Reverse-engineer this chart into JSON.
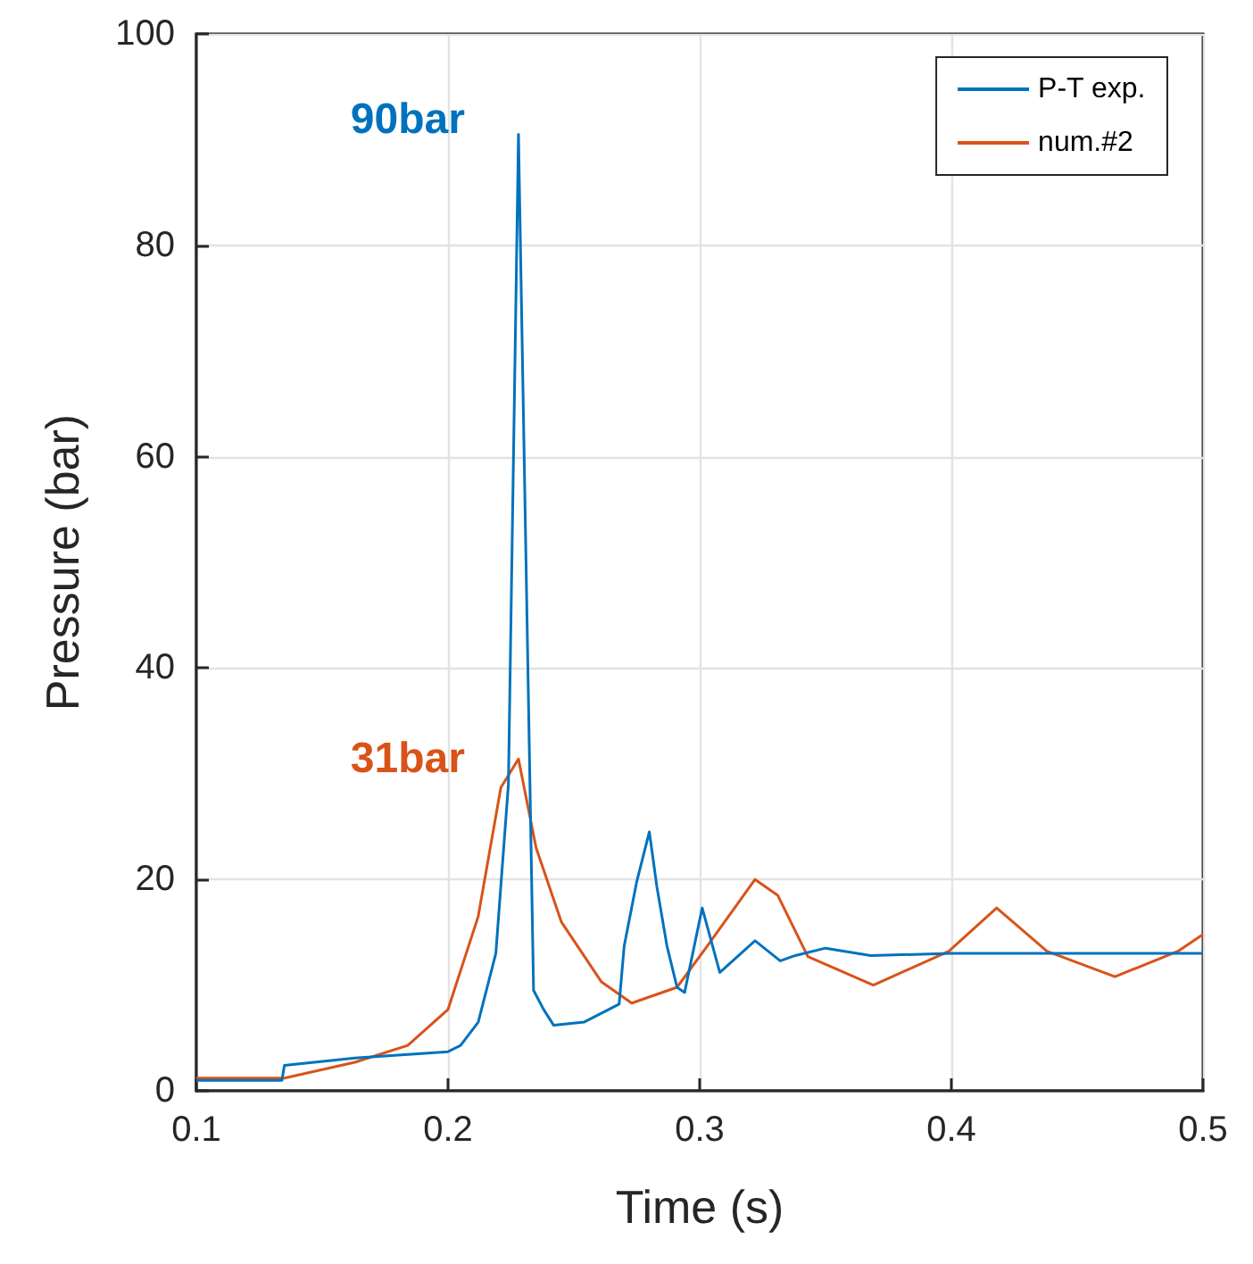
{
  "chart_data": {
    "type": "line",
    "xlabel": "Time (s)",
    "ylabel": "Pressure (bar)",
    "xlim": [
      0.1,
      0.5
    ],
    "xticks": [
      0.1,
      0.2,
      0.3,
      0.4,
      0.5
    ],
    "ylim": [
      0,
      100
    ],
    "yticks": [
      0,
      20,
      40,
      60,
      80,
      100
    ],
    "grid": true,
    "legend": "top right",
    "series": [
      {
        "name": "P-T exp.",
        "color": "#0072bd",
        "x": [
          0.1,
          0.134,
          0.135,
          0.163,
          0.2,
          0.205,
          0.212,
          0.219,
          0.224,
          0.228,
          0.231,
          0.234,
          0.238,
          0.242,
          0.254,
          0.268,
          0.27,
          0.275,
          0.28,
          0.283,
          0.287,
          0.291,
          0.294,
          0.301,
          0.308,
          0.322,
          0.332,
          0.338,
          0.35,
          0.368,
          0.4,
          0.45,
          0.5
        ],
        "values": [
          1,
          1,
          2.4,
          3.1,
          3.7,
          4.3,
          6.5,
          13,
          29,
          90.5,
          50,
          9.5,
          7.7,
          6.2,
          6.5,
          8.2,
          13.7,
          19.8,
          24.5,
          19.3,
          13.7,
          9.8,
          9.3,
          17.3,
          11.2,
          14.2,
          12.3,
          12.8,
          13.5,
          12.8,
          13,
          13,
          13
        ]
      },
      {
        "name": "num.#2",
        "color": "#d95319",
        "x": [
          0.1,
          0.135,
          0.163,
          0.184,
          0.2,
          0.212,
          0.221,
          0.228,
          0.235,
          0.245,
          0.261,
          0.273,
          0.291,
          0.303,
          0.322,
          0.331,
          0.343,
          0.369,
          0.399,
          0.418,
          0.438,
          0.465,
          0.49,
          0.5
        ],
        "values": [
          1.2,
          1.2,
          2.7,
          4.3,
          7.7,
          16.5,
          28.7,
          31.4,
          23,
          16,
          10.3,
          8.3,
          9.8,
          13.7,
          20,
          18.5,
          12.7,
          10,
          13.2,
          17.3,
          13.2,
          10.8,
          13.2,
          14.8
        ]
      }
    ],
    "annotations": [
      {
        "text": "90bar",
        "x": 0.228,
        "y": 90.5
      },
      {
        "text": "31bar",
        "x": 0.228,
        "y": 31.4
      }
    ]
  }
}
